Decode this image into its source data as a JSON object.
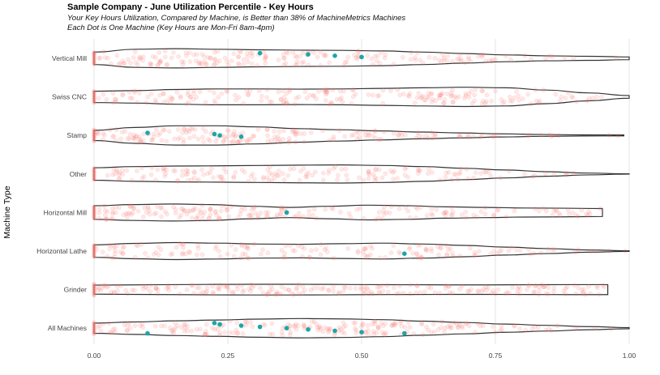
{
  "chart_data": {
    "type": "scatter",
    "subtype": "violin-with-jitter",
    "title": "Sample Company - June Utilization Percentile - Key Hours",
    "subtitle": [
      "Your Key Hours Utilization, Compared by Machine, is Better than 38% of MachineMetrics Machines",
      "Each Dot is One Machine (Key Hours are Mon-Fri 8am-4pm)"
    ],
    "xlabel": "",
    "ylabel": "Machine Type",
    "xlim": [
      0,
      1
    ],
    "x_ticks": [
      "0.00",
      "0.25",
      "0.50",
      "0.75",
      "1.00"
    ],
    "grid": "vertical major gridlines",
    "categories": [
      "Vertical Mill",
      "Swiss CNC",
      "Stamp",
      "Other",
      "Horizontal Mill",
      "Horizontal Lathe",
      "Grinder",
      "All Machines"
    ],
    "colors": {
      "population": "#f8766d",
      "company": "#1ba7a7",
      "violin": "#333333",
      "grid": "#dddddd"
    },
    "violins": [
      {
        "category": "Vertical Mill",
        "max": 1.0,
        "widths": [
          0.55,
          0.8,
          0.85,
          0.8,
          0.75,
          0.72,
          0.7,
          0.65,
          0.55,
          0.42,
          0.3,
          0.22,
          0.18,
          0.12
        ]
      },
      {
        "category": "Swiss CNC",
        "max": 1.0,
        "widths": [
          0.5,
          0.55,
          0.65,
          0.7,
          0.7,
          0.68,
          0.7,
          0.75,
          0.8,
          0.85,
          0.8,
          0.6,
          0.35,
          0.12
        ]
      },
      {
        "category": "Stamp",
        "max": 0.99,
        "widths": [
          0.45,
          0.7,
          0.85,
          0.85,
          0.75,
          0.6,
          0.5,
          0.4,
          0.3,
          0.22,
          0.14,
          0.08,
          0.05,
          0.04
        ]
      },
      {
        "category": "Other",
        "max": 1.0,
        "widths": [
          0.55,
          0.65,
          0.7,
          0.72,
          0.75,
          0.78,
          0.8,
          0.75,
          0.65,
          0.5,
          0.35,
          0.2,
          0.08,
          0.01
        ]
      },
      {
        "category": "Horizontal Mill",
        "max": 0.95,
        "widths": [
          0.6,
          0.7,
          0.75,
          0.7,
          0.55,
          0.45,
          0.55,
          0.65,
          0.6,
          0.5,
          0.45,
          0.4,
          0.38,
          0.35
        ]
      },
      {
        "category": "Horizontal Lathe",
        "max": 1.0,
        "widths": [
          0.55,
          0.68,
          0.75,
          0.7,
          0.62,
          0.6,
          0.65,
          0.7,
          0.62,
          0.5,
          0.35,
          0.22,
          0.1,
          0.03
        ]
      },
      {
        "category": "Grinder",
        "max": 0.96,
        "widths": [
          0.4,
          0.42,
          0.44,
          0.46,
          0.47,
          0.47,
          0.46,
          0.44,
          0.43,
          0.42,
          0.42,
          0.43,
          0.44,
          0.44
        ]
      },
      {
        "category": "All Machines",
        "max": 1.0,
        "widths": [
          0.45,
          0.55,
          0.65,
          0.72,
          0.8,
          0.85,
          0.82,
          0.75,
          0.62,
          0.5,
          0.36,
          0.25,
          0.14,
          0.05
        ]
      }
    ],
    "company_machines": [
      {
        "category": "Vertical Mill",
        "x": [
          0.31,
          0.4,
          0.45,
          0.5
        ]
      },
      {
        "category": "Stamp",
        "x": [
          0.1,
          0.225,
          0.235,
          0.275
        ]
      },
      {
        "category": "Horizontal Mill",
        "x": [
          0.36
        ]
      },
      {
        "category": "Horizontal Lathe",
        "x": [
          0.58
        ]
      },
      {
        "category": "All Machines",
        "x": [
          0.1,
          0.225,
          0.235,
          0.275,
          0.31,
          0.36,
          0.4,
          0.45,
          0.5,
          0.58
        ]
      }
    ]
  }
}
